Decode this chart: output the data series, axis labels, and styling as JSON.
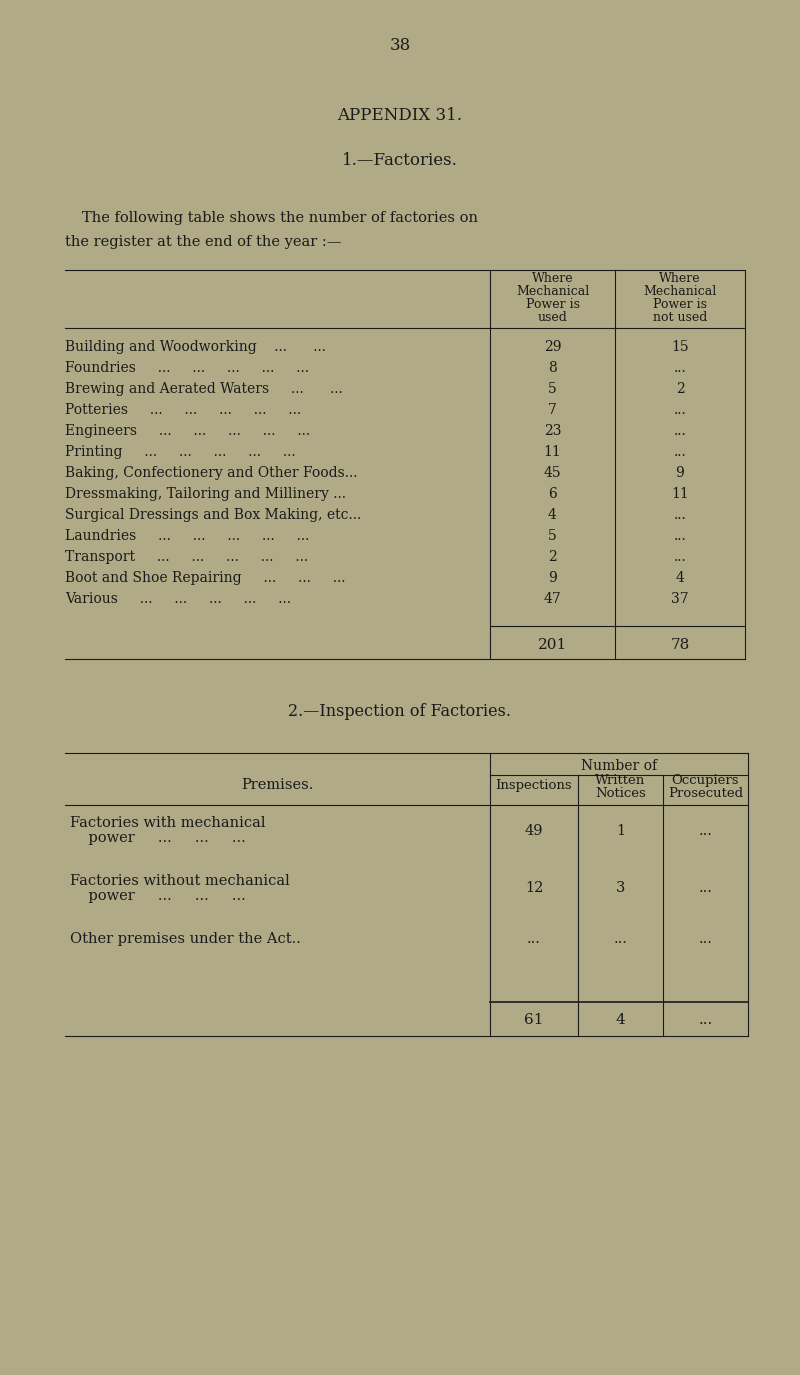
{
  "bg_color": "#b0ab86",
  "text_color": "#1a1a1a",
  "page_number": "38",
  "appendix_title": "APPENDIX 31.",
  "section1_title": "1.—Factories.",
  "intro_line1": "The following table shows the number of factories on",
  "intro_line2": "the register at the end of the year :—",
  "table1_data": [
    {
      "label": "Building and Woodworking    ...      ...",
      "mech": "29",
      "no_mech": "15"
    },
    {
      "label": "Foundries     ...     ...     ...     ...     ...",
      "mech": "8",
      "no_mech": "..."
    },
    {
      "label": "Brewing and Aerated Waters     ...      ...",
      "mech": "5",
      "no_mech": "2"
    },
    {
      "label": "Potteries     ...     ...     ...     ...     ...",
      "mech": "7",
      "no_mech": "..."
    },
    {
      "label": "Engineers     ...     ...     ...     ...     ...",
      "mech": "23",
      "no_mech": "..."
    },
    {
      "label": "Printing     ...     ...     ...     ...     ...",
      "mech": "11",
      "no_mech": "..."
    },
    {
      "label": "Baking, Confectionery and Other Foods...",
      "mech": "45",
      "no_mech": "9"
    },
    {
      "label": "Dressmaking, Tailoring and Millinery ...",
      "mech": "6",
      "no_mech": "11"
    },
    {
      "label": "Surgical Dressings and Box Making, etc...",
      "mech": "4",
      "no_mech": "..."
    },
    {
      "label": "Laundries     ...     ...     ...     ...     ...",
      "mech": "5",
      "no_mech": "..."
    },
    {
      "label": "Transport     ...     ...     ...     ...     ...",
      "mech": "2",
      "no_mech": "..."
    },
    {
      "label": "Boot and Shoe Repairing     ...     ...     ...",
      "mech": "9",
      "no_mech": "4"
    },
    {
      "label": "Various     ...     ...     ...     ...     ...",
      "mech": "47",
      "no_mech": "37"
    }
  ],
  "table1_totals": [
    "201",
    "78"
  ],
  "section2_title": "2.—Inspection of Factories.",
  "table2_row_labels": [
    [
      "Factories with mechanical",
      "    power     ...     ...     ..."
    ],
    [
      "Factories without mechanical",
      "    power     ...     ...     ..."
    ],
    [
      "Other premises under the Act.."
    ]
  ],
  "table2_insp": [
    "49",
    "12",
    "..."
  ],
  "table2_notices": [
    "1",
    "3",
    "..."
  ],
  "table2_occ": [
    "...",
    "...",
    "..."
  ],
  "table2_totals": [
    "61",
    "4",
    "..."
  ]
}
